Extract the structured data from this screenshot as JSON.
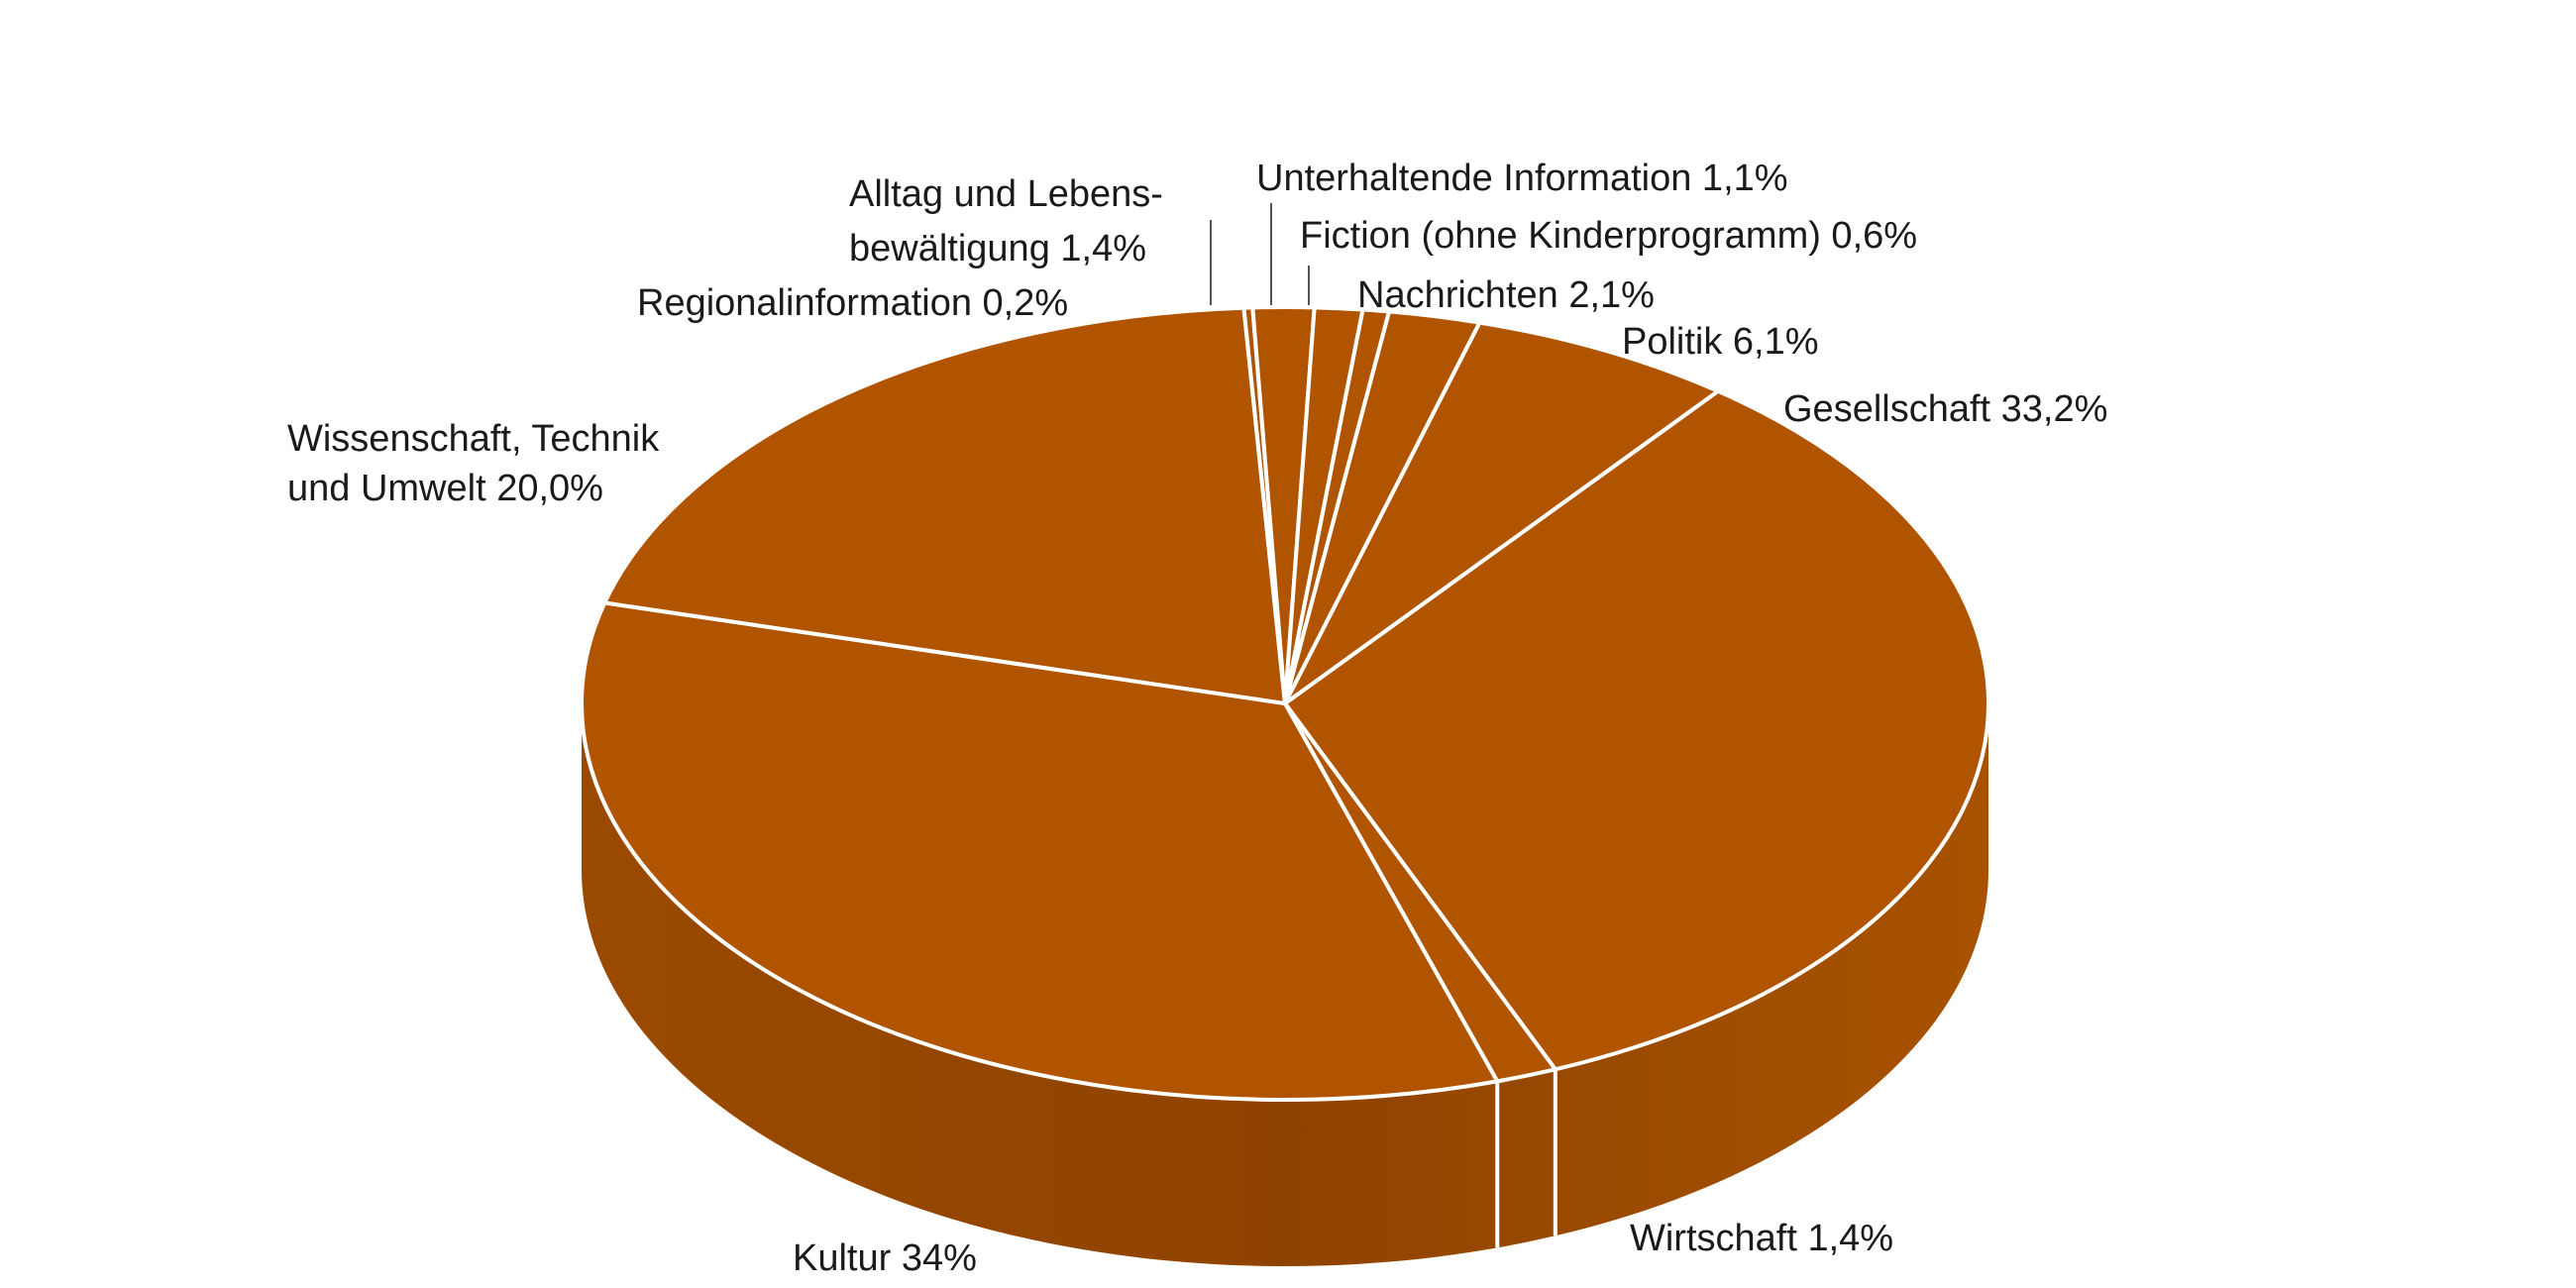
{
  "chart_data": {
    "type": "pie",
    "style": "3d",
    "slice_color": "#b05400",
    "side_color": "#8f4300",
    "divider_color": "#ffffff",
    "slices": [
      {
        "label": "Gesellschaft",
        "value": 33.2,
        "label_text": "Gesellschaft  33,2%"
      },
      {
        "label": "Wirtschaft",
        "value": 1.4,
        "label_text": "Wirtschaft  1,4%"
      },
      {
        "label": "Kultur",
        "value": 34,
        "label_text": "Kultur 34%"
      },
      {
        "label": "Wissenschaft, Technik und Umwelt",
        "value": 20.0,
        "label_lines": [
          "Wissenschaft, Technik",
          "und Umwelt  20,0%"
        ]
      },
      {
        "label": "Regionalinformation",
        "value": 0.2,
        "label_text": "Regionalinformation  0,2%"
      },
      {
        "label": "Alltag und Lebensbewältigung",
        "value": 1.4,
        "label_lines": [
          "Alltag und Lebens-",
          "bewältigung  1,4%"
        ]
      },
      {
        "label": "Unterhaltende Information",
        "value": 1.1,
        "label_text": "Unterhaltende Information  1,1%"
      },
      {
        "label": "Fiction (ohne Kinderprogramm)",
        "value": 0.6,
        "label_text": "Fiction (ohne Kinderprogramm)  0,6%"
      },
      {
        "label": "Nachrichten",
        "value": 2.1,
        "label_text": "Nachrichten  2,1%"
      },
      {
        "label": "Politik",
        "value": 6.1,
        "label_text": "Politik  6,1%"
      }
    ]
  }
}
